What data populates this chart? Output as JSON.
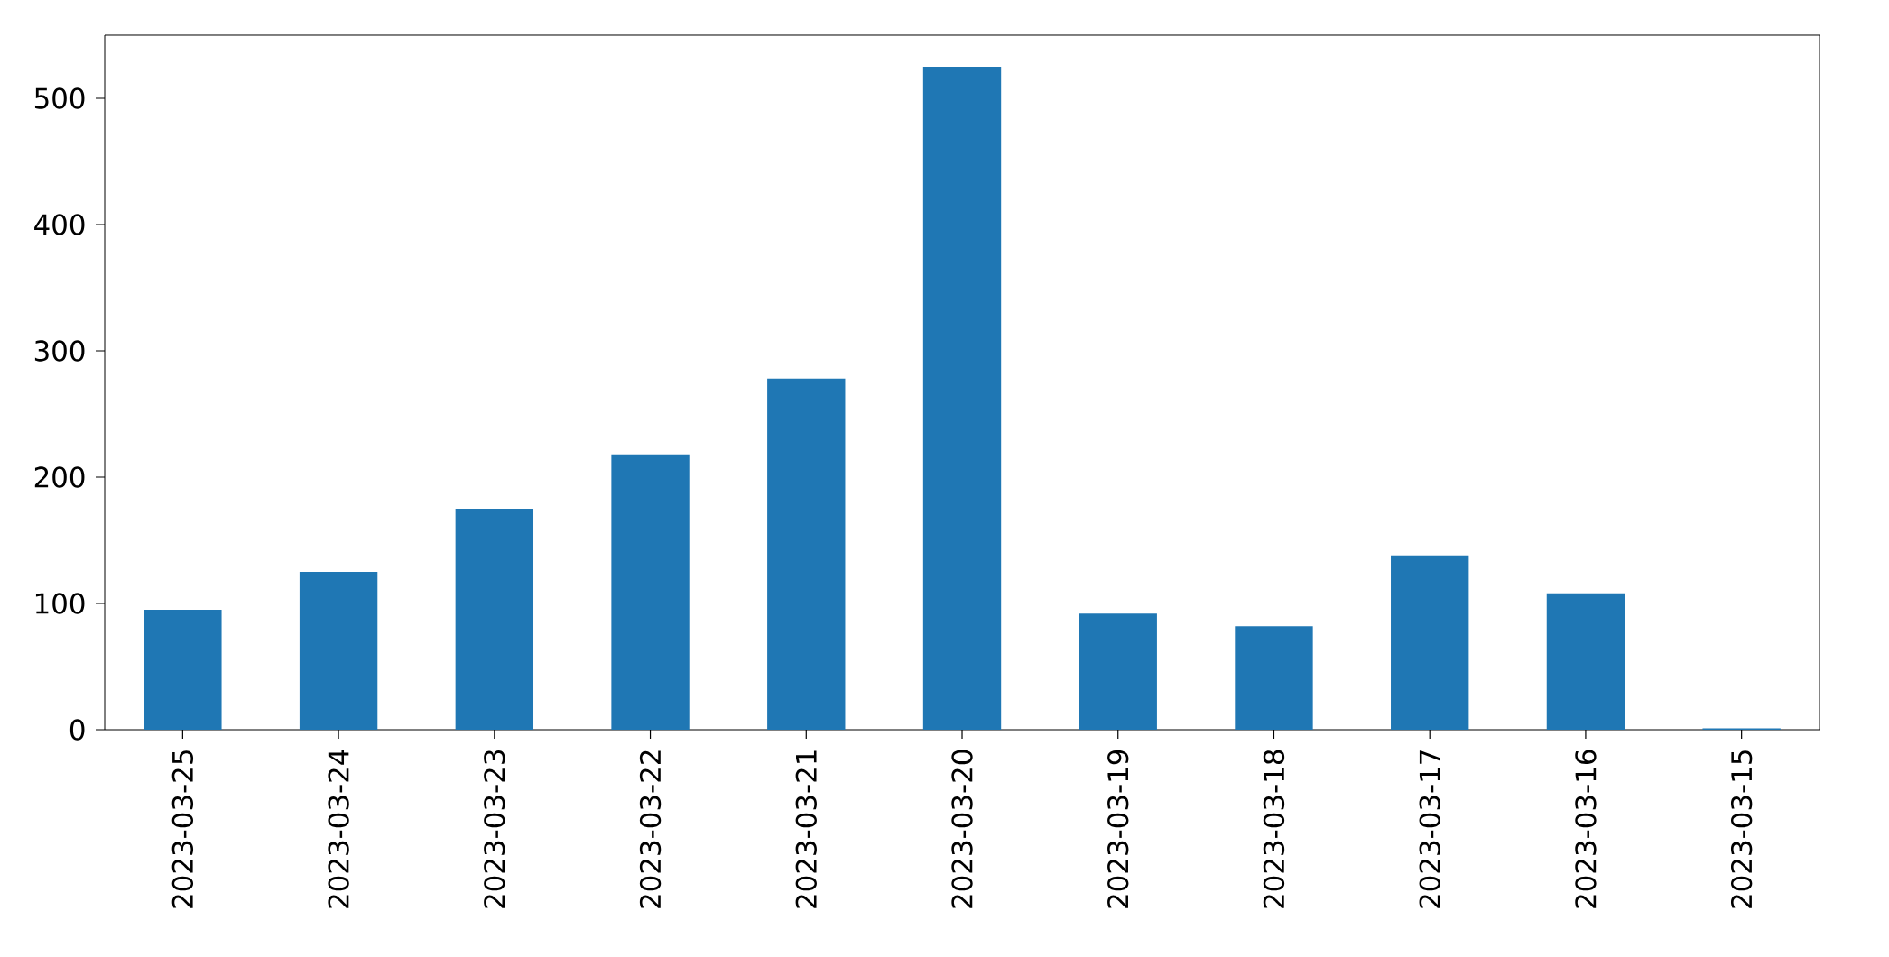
{
  "chart_data": {
    "type": "bar",
    "categories": [
      "2023-03-25",
      "2023-03-24",
      "2023-03-23",
      "2023-03-22",
      "2023-03-21",
      "2023-03-20",
      "2023-03-19",
      "2023-03-18",
      "2023-03-17",
      "2023-03-16",
      "2023-03-15"
    ],
    "values": [
      95,
      125,
      175,
      218,
      278,
      525,
      92,
      82,
      138,
      108,
      1
    ],
    "color": "#1f77b4",
    "ylim": [
      0,
      550
    ],
    "yticks": [
      0,
      100,
      200,
      300,
      400,
      500
    ]
  }
}
